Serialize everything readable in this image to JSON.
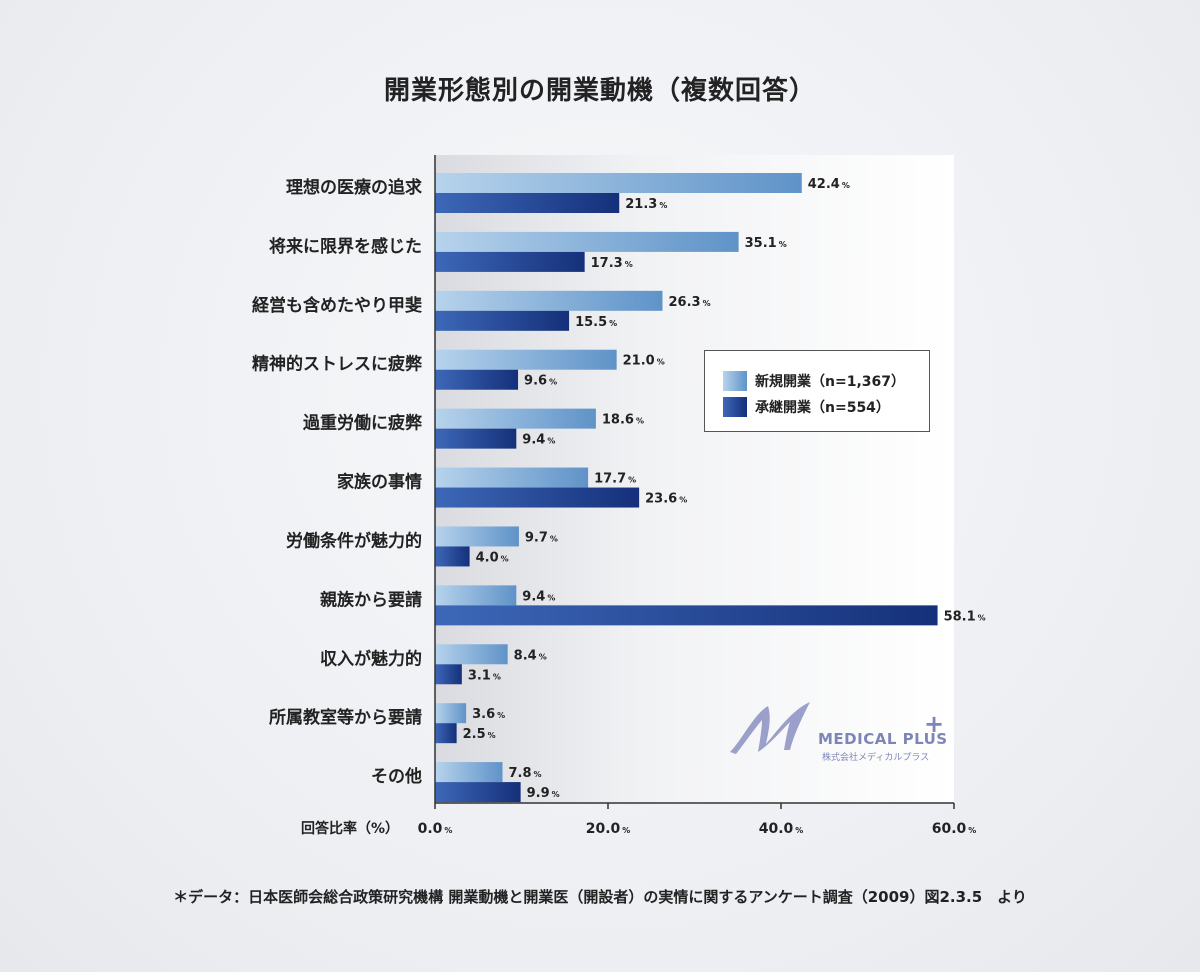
{
  "title": "開業形態別の開業動機（複数回答）",
  "footnote": "＊データ：日本医師会総合政策研究機構 開業動機と開業医（開設者）の実情に関するアンケート調査（2009）図2.3.5　より",
  "logo": {
    "text": "MEDICAL PLUS",
    "subtext": "株式会社メディカルプラス",
    "plus": "+"
  },
  "colors": {
    "new_light": "#b7d3ec",
    "new_dark": "#5f93c8",
    "succ_light": "#3d68b8",
    "succ_dark": "#15307a",
    "logo": "#7e86b8"
  },
  "chart_data": {
    "type": "bar",
    "orientation": "horizontal",
    "title": "開業形態別の開業動機（複数回答）",
    "xlabel": "回答比率（%）",
    "xlim": [
      0,
      60
    ],
    "xticks": [
      "0.0",
      "20.0",
      "40.0",
      "60.0"
    ],
    "tick_unit": "%",
    "legend_position": "right-middle",
    "categories": [
      "理想の医療の追求",
      "将来に限界を感じた",
      "経営も含めたやり甲斐",
      "精神的ストレスに疲弊",
      "過重労働に疲弊",
      "家族の事情",
      "労働条件が魅力的",
      "親族から要請",
      "収入が魅力的",
      "所属教室等から要請",
      "その他"
    ],
    "series": [
      {
        "name": "新規開業（n=1,367）",
        "values": [
          42.4,
          35.1,
          26.3,
          21.0,
          18.6,
          17.7,
          9.7,
          9.4,
          8.4,
          3.6,
          7.8
        ],
        "labels": [
          "42.4",
          "35.1",
          "26.3",
          "21.0",
          "18.6",
          "17.7",
          "9.7",
          "9.4",
          "8.4",
          "3.6",
          "7.8"
        ]
      },
      {
        "name": "承継開業（n=554）",
        "values": [
          21.3,
          17.3,
          15.5,
          9.6,
          9.4,
          23.6,
          4.0,
          58.1,
          3.1,
          2.5,
          9.9
        ],
        "labels": [
          "21.3",
          "17.3",
          "15.5",
          "9.6",
          "9.4",
          "23.6",
          "4.0",
          "58.1",
          "3.1",
          "2.5",
          "9.9"
        ]
      }
    ]
  }
}
